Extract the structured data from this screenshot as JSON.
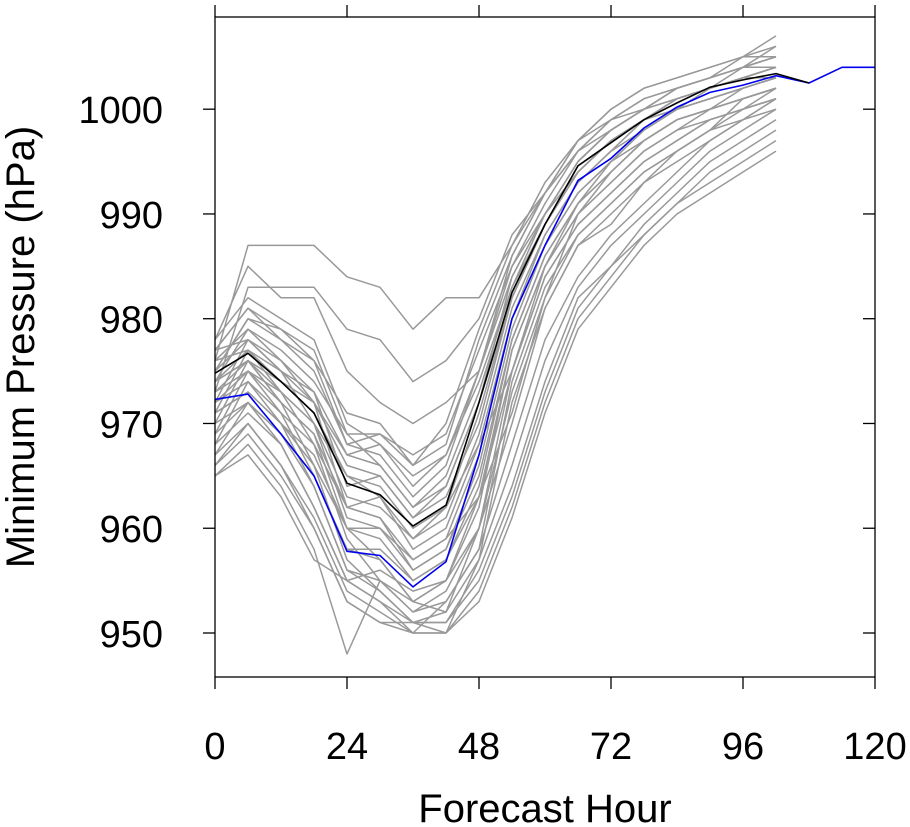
{
  "chart_data": {
    "type": "line",
    "xlabel": "Forecast Hour",
    "ylabel": "Minimum Pressure (hPa)",
    "xlim": [
      0,
      120
    ],
    "ylim": [
      945.8,
      1008.8
    ],
    "x_ticks": [
      0,
      24,
      48,
      72,
      96,
      120
    ],
    "y_ticks": [
      950,
      960,
      970,
      980,
      990,
      1000
    ],
    "x_tick_labels": [
      "0",
      "24",
      "48",
      "72",
      "96",
      "120"
    ],
    "y_tick_labels": [
      "950",
      "960",
      "970",
      "980",
      "990",
      "1000"
    ],
    "grid": false,
    "legend": "none",
    "x": [
      0,
      6,
      12,
      18,
      24,
      30,
      36,
      42,
      48,
      54,
      60,
      66,
      72,
      78,
      84,
      90,
      96,
      102,
      108,
      114,
      120
    ],
    "colors": {
      "ensemble": "#999999",
      "mean": "#000000",
      "blue": "#0000ee",
      "axis": "#000000"
    },
    "highlight_series": [
      {
        "color": "#0000ee",
        "values": [
          972.3,
          972.8,
          969,
          965,
          957.8,
          957.4,
          954.4,
          956.8,
          967,
          980,
          987,
          993.2,
          995.3,
          998.2,
          1000.2,
          1001.6,
          1002.3,
          1003.2,
          1002.5,
          1004,
          1004
        ]
      },
      {
        "color": "#000000",
        "values": [
          974.8,
          976.7,
          974,
          971,
          964.3,
          963.2,
          960.2,
          962.2,
          972,
          982.5,
          989,
          994.6,
          996.8,
          999,
          1000.6,
          1002.1,
          1002.8,
          1003.4,
          1002.5,
          null,
          null
        ]
      }
    ],
    "ensemble_series": [
      {
        "values": [
          978,
          985,
          982,
          982,
          975,
          972,
          970,
          972,
          975,
          985,
          990,
          994,
          997,
          999,
          1000,
          1001,
          1002,
          1003,
          null,
          null,
          null
        ]
      },
      {
        "values": [
          976,
          987,
          987,
          987,
          984,
          983,
          979,
          982,
          982,
          987,
          992,
          996,
          998,
          1000,
          1001,
          1002,
          1003,
          1004,
          null,
          null,
          null
        ]
      },
      {
        "values": [
          973,
          983,
          983,
          983,
          979,
          978,
          974,
          976,
          980,
          988,
          992,
          996,
          999,
          1000,
          1002,
          1003,
          1004,
          1005,
          null,
          null,
          null
        ]
      },
      {
        "values": [
          977,
          981,
          979,
          977,
          969,
          966,
          962,
          964,
          972,
          984,
          990,
          995,
          998,
          1000,
          1001,
          1002,
          1004,
          1006,
          null,
          null,
          null
        ]
      },
      {
        "values": [
          975,
          980,
          978,
          975,
          968,
          967,
          963,
          966,
          975,
          986,
          992,
          997,
          999,
          1001,
          1002,
          1003,
          1005,
          1007,
          null,
          null,
          null
        ]
      },
      {
        "values": [
          974,
          979,
          976,
          972,
          966,
          965,
          961,
          963,
          970,
          982,
          989,
          994,
          997,
          999,
          1001,
          1002,
          1003,
          1004,
          null,
          null,
          null
        ]
      },
      {
        "values": [
          972,
          978,
          975,
          970,
          965,
          963,
          958,
          960,
          968,
          980,
          988,
          993,
          996,
          998,
          1000,
          1001,
          1002,
          1003,
          null,
          null,
          null
        ]
      },
      {
        "values": [
          971,
          977,
          973,
          968,
          962,
          961,
          956,
          958,
          966,
          979,
          987,
          992,
          995,
          997,
          999,
          1000,
          1001,
          1002,
          null,
          null,
          null
        ]
      },
      {
        "values": [
          970,
          976,
          972,
          966,
          960,
          959,
          955,
          957,
          964,
          978,
          986,
          991,
          994,
          997,
          999,
          1000,
          1001,
          1002,
          null,
          null,
          null
        ]
      },
      {
        "values": [
          969,
          975,
          971,
          965,
          958,
          957,
          953,
          955,
          962,
          977,
          985,
          990,
          993,
          996,
          998,
          999,
          1000,
          1001,
          null,
          null,
          null
        ]
      },
      {
        "values": [
          968,
          974,
          970,
          964,
          956,
          955,
          952,
          954,
          960,
          975,
          984,
          989,
          992,
          995,
          997,
          999,
          1000,
          1001,
          null,
          null,
          null
        ]
      },
      {
        "values": [
          967,
          972,
          968,
          962,
          955,
          953,
          950,
          953,
          958,
          974,
          983,
          988,
          991,
          994,
          996,
          998,
          999,
          1001,
          null,
          null,
          null
        ]
      },
      {
        "values": [
          966,
          970,
          966,
          960,
          953,
          951,
          951,
          950,
          957,
          972,
          981,
          987,
          990,
          993,
          995,
          997,
          999,
          1000,
          null,
          null,
          null
        ]
      },
      {
        "values": [
          965,
          968,
          964,
          958,
          948,
          955,
          953,
          952,
          960,
          973,
          982,
          988,
          991,
          994,
          996,
          998,
          1000,
          1001,
          null,
          null,
          null
        ]
      },
      {
        "values": [
          965,
          967,
          963,
          957,
          955,
          956,
          954,
          955,
          963,
          975,
          984,
          989,
          992,
          995,
          997,
          999,
          1000,
          1002,
          null,
          null,
          null
        ]
      },
      {
        "values": [
          975,
          980,
          979,
          976,
          968,
          969,
          966,
          968,
          978,
          986,
          992,
          997,
          1000,
          1002,
          1003,
          1004,
          1005,
          1006,
          null,
          null,
          null
        ]
      },
      {
        "values": [
          976,
          979,
          977,
          974,
          969,
          969,
          967,
          969,
          977,
          985,
          991,
          996,
          999,
          1001,
          1002,
          1003,
          1004,
          1005,
          null,
          null,
          null
        ]
      },
      {
        "values": [
          977,
          978,
          975,
          973,
          967,
          968,
          964,
          967,
          975,
          984,
          990,
          995,
          998,
          1000,
          1002,
          1003,
          1004,
          1004,
          null,
          null,
          null
        ]
      },
      {
        "values": [
          973,
          976,
          974,
          971,
          965,
          964,
          960,
          962,
          971,
          982,
          989,
          994,
          997,
          999,
          1001,
          1002,
          1003,
          1004,
          null,
          null,
          null
        ]
      },
      {
        "values": [
          972,
          975,
          973,
          970,
          963,
          962,
          959,
          961,
          969,
          981,
          988,
          993,
          996,
          999,
          1000,
          1002,
          1003,
          1003,
          null,
          null,
          null
        ]
      },
      {
        "values": [
          974,
          976,
          972,
          969,
          962,
          961,
          957,
          959,
          967,
          980,
          987,
          992,
          995,
          998,
          1000,
          1001,
          1002,
          1003,
          null,
          null,
          null
        ]
      },
      {
        "values": [
          971,
          973,
          970,
          967,
          960,
          960,
          956,
          958,
          965,
          978,
          986,
          991,
          994,
          997,
          999,
          1000,
          1002,
          1003,
          null,
          null,
          null
        ]
      },
      {
        "values": [
          969,
          972,
          969,
          965,
          958,
          958,
          955,
          957,
          963,
          977,
          985,
          990,
          993,
          996,
          998,
          1000,
          1001,
          1002,
          null,
          null,
          null
        ]
      },
      {
        "values": [
          978,
          982,
          980,
          978,
          970,
          968,
          965,
          967,
          974,
          983,
          989,
          994,
          997,
          999,
          1001,
          1002,
          1003,
          1004,
          null,
          null,
          null
        ]
      },
      {
        "values": [
          977,
          981,
          978,
          976,
          971,
          970,
          966,
          970,
          979,
          987,
          993,
          997,
          1000,
          1002,
          1003,
          1004,
          1005,
          1005,
          null,
          null,
          null
        ]
      },
      {
        "values": [
          974,
          977,
          975,
          972,
          967,
          966,
          962,
          965,
          973,
          983,
          990,
          995,
          998,
          1000,
          1002,
          1003,
          1004,
          1005,
          null,
          null,
          null
        ]
      },
      {
        "values": [
          975,
          978,
          976,
          973,
          964,
          965,
          961,
          964,
          972,
          982,
          989,
          994,
          997,
          999,
          1001,
          1002,
          1003,
          1004,
          null,
          null,
          null
        ]
      },
      {
        "values": [
          976,
          977,
          974,
          972,
          962,
          963,
          959,
          962,
          968,
          975,
          985,
          991,
          995,
          998,
          1000,
          1001,
          1002,
          1003,
          null,
          null,
          null
        ]
      },
      {
        "values": [
          974,
          976,
          973,
          970,
          961,
          960,
          957,
          959,
          963,
          971,
          982,
          990,
          994,
          997,
          999,
          1000,
          1001,
          1002,
          null,
          null,
          null
        ]
      },
      {
        "values": [
          973,
          975,
          972,
          969,
          960,
          957,
          953,
          955,
          960,
          970,
          981,
          987,
          989,
          993,
          996,
          998,
          1001,
          1002,
          null,
          null,
          null
        ]
      },
      {
        "values": [
          972,
          974,
          971,
          968,
          959,
          955,
          952,
          953,
          958,
          968,
          978,
          984,
          988,
          991,
          994,
          997,
          999,
          1001,
          null,
          null,
          null
        ]
      },
      {
        "values": [
          971,
          973,
          970,
          966,
          957,
          954,
          951,
          952,
          957,
          966,
          976,
          983,
          987,
          990,
          993,
          996,
          998,
          1000,
          null,
          null,
          null
        ]
      },
      {
        "values": [
          970,
          972,
          969,
          964,
          956,
          954,
          951,
          951,
          956,
          964,
          974,
          982,
          985,
          989,
          992,
          995,
          997,
          999,
          null,
          null,
          null
        ]
      },
      {
        "values": [
          968,
          971,
          968,
          962,
          955,
          953,
          951,
          951,
          955,
          963,
          973,
          981,
          985,
          988,
          991,
          994,
          996,
          998,
          null,
          null,
          null
        ]
      },
      {
        "values": [
          967,
          970,
          966,
          961,
          954,
          952,
          950,
          950,
          954,
          962,
          972,
          980,
          984,
          988,
          991,
          993,
          995,
          997,
          null,
          null,
          null
        ]
      },
      {
        "values": [
          966,
          969,
          965,
          960,
          953,
          951,
          950,
          950,
          953,
          961,
          971,
          979,
          983,
          987,
          990,
          992,
          994,
          996,
          null,
          null,
          null
        ]
      }
    ]
  }
}
